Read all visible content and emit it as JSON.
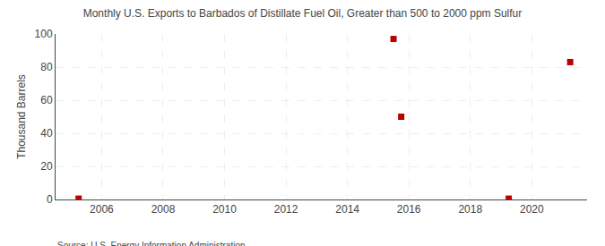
{
  "chart_data": {
    "type": "scatter",
    "title": "Monthly U.S. Exports to Barbados of Distillate Fuel Oil, Greater than 500 to 2000 ppm Sulfur",
    "ylabel": "Thousand Barrels",
    "source": "Source: U.S. Energy Information Administration",
    "x": [
      2005.25,
      2015.5,
      2015.75,
      2019.25,
      2021.25
    ],
    "values": [
      0.5,
      97,
      50,
      0.5,
      83
    ],
    "color": "#bb0000",
    "marker": "square",
    "xlim": [
      2004.5,
      2021.8
    ],
    "xticks": [
      2006,
      2008,
      2010,
      2012,
      2014,
      2016,
      2018,
      2020
    ],
    "ylim": [
      0,
      100
    ],
    "yticks": [
      0,
      20,
      40,
      60,
      80,
      100
    ],
    "grid": true
  }
}
